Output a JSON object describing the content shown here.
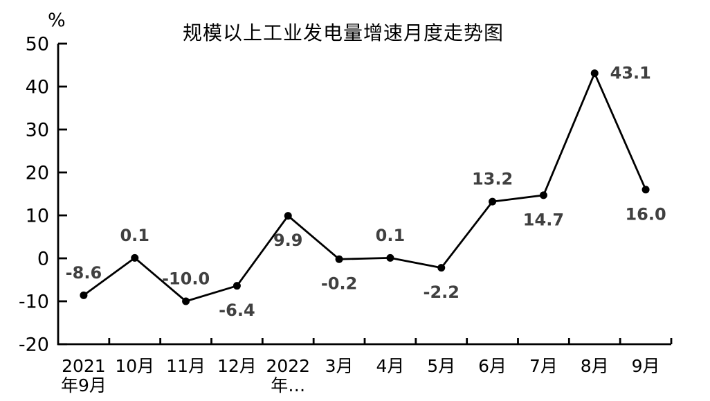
{
  "page": {
    "background": "#ffffff"
  },
  "chart_data": {
    "type": "line",
    "title": "规模以上工业发电量增速月度走势图",
    "y_unit_label": "%",
    "categories": [
      "2021年9月",
      "10月",
      "11月",
      "12月",
      "2022年…",
      "3月",
      "4月",
      "5月",
      "6月",
      "7月",
      "8月",
      "9月"
    ],
    "category_display": [
      "2021\n年9月",
      "10月",
      "11月",
      "12月",
      "2022\n年…",
      "3月",
      "4月",
      "5月",
      "6月",
      "7月",
      "8月",
      "9月"
    ],
    "values": [
      -8.6,
      0.1,
      -10.0,
      -6.4,
      9.9,
      -0.2,
      0.1,
      -2.2,
      13.2,
      14.7,
      43.1,
      16.0
    ],
    "data_labels": [
      "-8.6",
      "0.1",
      "-10.0",
      "-6.4",
      "9.9",
      "-0.2",
      "0.1",
      "-2.2",
      "13.2",
      "14.7",
      "43.1",
      "16.0"
    ],
    "label_positions": [
      "above",
      "above",
      "above",
      "below",
      "below",
      "below",
      "above",
      "below",
      "above",
      "below",
      "right",
      "below"
    ],
    "ylim": [
      -20,
      50
    ],
    "yticks": [
      50,
      40,
      30,
      20,
      10,
      0,
      -10,
      -20
    ],
    "grid": false,
    "legend": "none",
    "colors": {
      "line": "#000000",
      "marker": "#000000",
      "axis": "#000000",
      "tick_label": "#000000",
      "data_label": "#404040",
      "background": "#ffffff"
    }
  }
}
